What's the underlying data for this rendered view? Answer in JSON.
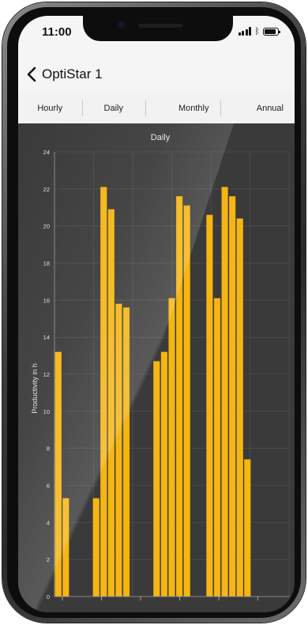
{
  "status_bar": {
    "time": "11:00"
  },
  "nav": {
    "title": "OptiStar 1"
  },
  "tabs": [
    {
      "label": "Hourly"
    },
    {
      "label": "Daily"
    },
    {
      "label": "Monthly"
    },
    {
      "label": "Annual"
    }
  ],
  "colors": {
    "bar": "#f5b614",
    "background": "#3a3a3a",
    "grid": "#555555"
  },
  "icons": [
    "back-chevron-icon",
    "cellular-signal-icon",
    "bluetooth-icon",
    "battery-icon"
  ],
  "chart_data": {
    "type": "bar",
    "title": "Daily",
    "ylabel": "Productivity in h",
    "xlabel": "",
    "ylim": [
      0,
      24
    ],
    "yticks": [
      "0",
      "2",
      "4",
      "6",
      "8",
      "10",
      "12",
      "14",
      "16",
      "18",
      "20",
      "22",
      "24"
    ],
    "grid": true,
    "x": [
      1,
      2,
      6,
      7,
      8,
      9,
      10,
      14,
      15,
      16,
      17,
      18,
      21,
      22,
      23,
      24,
      25,
      26
    ],
    "values": [
      13.2,
      5.3,
      5.3,
      22.1,
      20.9,
      15.8,
      15.6,
      12.7,
      13.2,
      16.1,
      21.6,
      21.1,
      20.6,
      16.1,
      22.1,
      21.6,
      20.4,
      7.4
    ],
    "xrange": [
      0.5,
      31.5
    ]
  }
}
